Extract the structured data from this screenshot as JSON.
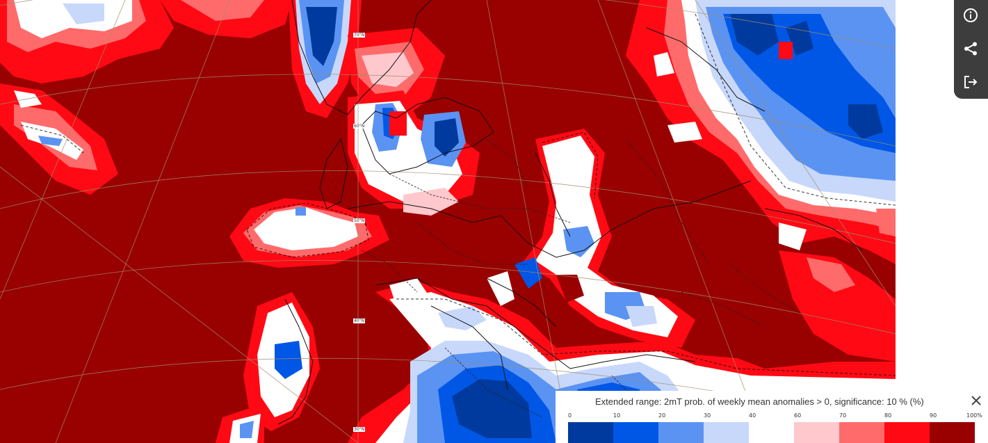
{
  "map": {
    "grid_labels": [
      "70°N",
      "60°N",
      "50°N",
      "40°N",
      "30°N"
    ]
  },
  "toolbar": {
    "info_icon": "info-icon",
    "share_icon": "share-icon",
    "export_icon": "export-icon"
  },
  "legend": {
    "title": "Extended range: 2mT prob. of weekly mean anomalies > 0, significance: 10 % (%)",
    "close_icon": "close-icon",
    "ticks": [
      "0",
      "10",
      "20",
      "30",
      "40",
      "60",
      "70",
      "80",
      "90",
      "100%"
    ],
    "bins": [
      {
        "from": 0,
        "to": 10,
        "color": "#003a9e"
      },
      {
        "from": 10,
        "to": 20,
        "color": "#0057e6"
      },
      {
        "from": 20,
        "to": 30,
        "color": "#5b93f2"
      },
      {
        "from": 30,
        "to": 40,
        "color": "#c7d8fb"
      },
      {
        "from": 40,
        "to": 60,
        "color": "#ffffff"
      },
      {
        "from": 60,
        "to": 70,
        "color": "#ffc8cd"
      },
      {
        "from": 70,
        "to": 80,
        "color": "#ff6b6b"
      },
      {
        "from": 80,
        "to": 90,
        "color": "#ff0a14"
      },
      {
        "from": 90,
        "to": 100,
        "color": "#990000"
      }
    ]
  },
  "colors": {
    "toolbar_bg": "#3d3d3d",
    "dark_red": "#990000",
    "red": "#ff0a14",
    "light_red": "#ff6b6b",
    "pink": "#ffc8cd",
    "white": "#ffffff",
    "light_blue": "#c7d8fb",
    "mid_blue": "#5b93f2",
    "blue": "#0057e6",
    "dark_blue": "#003a9e"
  }
}
